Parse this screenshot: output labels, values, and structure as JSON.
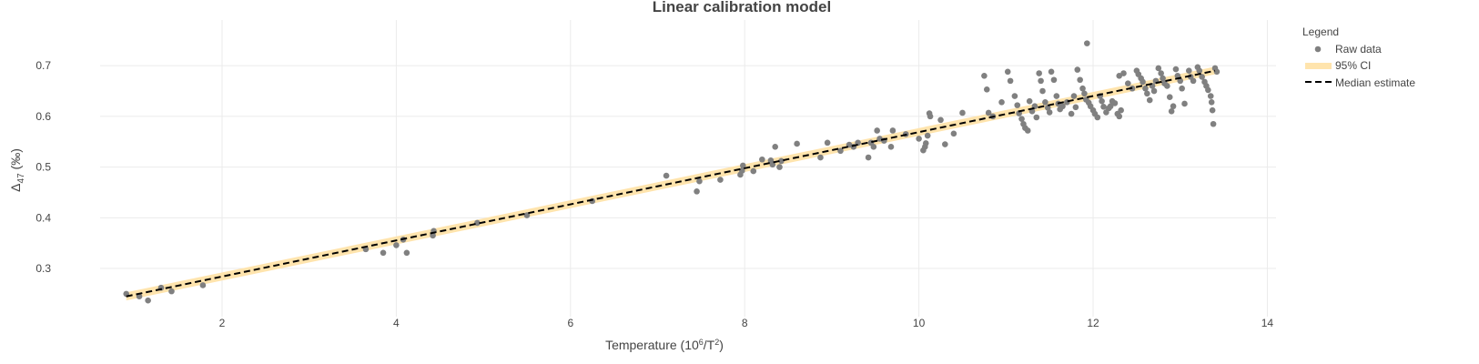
{
  "chart_data": {
    "type": "scatter",
    "title": "Linear calibration model",
    "xlabel": {
      "prefix": "Temperature (10",
      "sup1": "6",
      "mid": "/T",
      "sup2": "2",
      "suffix": ")"
    },
    "ylabel": {
      "prefix": "Δ",
      "sub": "47",
      "suffix": " (‰)"
    },
    "xlim": [
      0.6,
      14.1
    ],
    "ylim": [
      0.205,
      0.79
    ],
    "xticks": [
      2,
      4,
      6,
      8,
      10,
      12,
      14
    ],
    "yticks": [
      0.3,
      0.4,
      0.5,
      0.6,
      0.7
    ],
    "grid": true,
    "legend": {
      "title": "Legend",
      "position": "right",
      "entries": [
        "Raw data",
        "95% CI",
        "Median estimate"
      ]
    },
    "colors": {
      "points": "#808080",
      "ci_band": "#ffe4ad",
      "median_line": "#000000",
      "grid": "#ebebeb",
      "text": "#444444"
    },
    "median_line": {
      "x": [
        0.9,
        13.4
      ],
      "y": [
        0.245,
        0.69
      ]
    },
    "ci_band": {
      "x": [
        0.9,
        13.4
      ],
      "lower": [
        0.237,
        0.683
      ],
      "upper": [
        0.253,
        0.698
      ]
    },
    "series": [
      {
        "name": "Raw data",
        "points": [
          [
            0.9,
            0.25
          ],
          [
            1.05,
            0.245
          ],
          [
            1.15,
            0.237
          ],
          [
            1.3,
            0.262
          ],
          [
            1.42,
            0.255
          ],
          [
            1.78,
            0.267
          ],
          [
            3.65,
            0.338
          ],
          [
            3.85,
            0.331
          ],
          [
            4.0,
            0.346
          ],
          [
            4.08,
            0.357
          ],
          [
            4.12,
            0.331
          ],
          [
            4.42,
            0.365
          ],
          [
            4.43,
            0.374
          ],
          [
            4.93,
            0.39
          ],
          [
            5.5,
            0.405
          ],
          [
            6.25,
            0.433
          ],
          [
            7.1,
            0.483
          ],
          [
            7.45,
            0.452
          ],
          [
            7.48,
            0.472
          ],
          [
            7.72,
            0.475
          ],
          [
            7.95,
            0.485
          ],
          [
            7.97,
            0.493
          ],
          [
            7.98,
            0.503
          ],
          [
            8.1,
            0.492
          ],
          [
            8.2,
            0.515
          ],
          [
            8.3,
            0.513
          ],
          [
            8.32,
            0.505
          ],
          [
            8.35,
            0.54
          ],
          [
            8.4,
            0.5
          ],
          [
            8.42,
            0.512
          ],
          [
            8.6,
            0.546
          ],
          [
            8.87,
            0.519
          ],
          [
            8.95,
            0.548
          ],
          [
            9.1,
            0.532
          ],
          [
            9.2,
            0.544
          ],
          [
            9.25,
            0.54
          ],
          [
            9.3,
            0.548
          ],
          [
            9.42,
            0.519
          ],
          [
            9.45,
            0.548
          ],
          [
            9.48,
            0.54
          ],
          [
            9.52,
            0.572
          ],
          [
            9.55,
            0.556
          ],
          [
            9.6,
            0.552
          ],
          [
            9.68,
            0.54
          ],
          [
            9.7,
            0.572
          ],
          [
            9.85,
            0.565
          ],
          [
            10.0,
            0.556
          ],
          [
            10.05,
            0.533
          ],
          [
            10.07,
            0.54
          ],
          [
            10.08,
            0.547
          ],
          [
            10.1,
            0.562
          ],
          [
            10.12,
            0.606
          ],
          [
            10.13,
            0.6
          ],
          [
            10.25,
            0.593
          ],
          [
            10.3,
            0.545
          ],
          [
            10.4,
            0.566
          ],
          [
            10.5,
            0.607
          ],
          [
            10.75,
            0.68
          ],
          [
            10.78,
            0.653
          ],
          [
            10.8,
            0.607
          ],
          [
            10.85,
            0.6
          ],
          [
            10.95,
            0.628
          ],
          [
            11.02,
            0.688
          ],
          [
            11.05,
            0.67
          ],
          [
            11.1,
            0.64
          ],
          [
            11.13,
            0.622
          ],
          [
            11.15,
            0.606
          ],
          [
            11.18,
            0.595
          ],
          [
            11.2,
            0.585
          ],
          [
            11.22,
            0.577
          ],
          [
            11.25,
            0.572
          ],
          [
            11.27,
            0.63
          ],
          [
            11.3,
            0.61
          ],
          [
            11.33,
            0.62
          ],
          [
            11.35,
            0.598
          ],
          [
            11.38,
            0.685
          ],
          [
            11.4,
            0.67
          ],
          [
            11.42,
            0.65
          ],
          [
            11.45,
            0.628
          ],
          [
            11.48,
            0.617
          ],
          [
            11.5,
            0.608
          ],
          [
            11.52,
            0.688
          ],
          [
            11.55,
            0.672
          ],
          [
            11.58,
            0.64
          ],
          [
            11.6,
            0.625
          ],
          [
            11.62,
            0.614
          ],
          [
            11.65,
            0.62
          ],
          [
            11.7,
            0.628
          ],
          [
            11.75,
            0.605
          ],
          [
            11.78,
            0.64
          ],
          [
            11.8,
            0.618
          ],
          [
            11.82,
            0.692
          ],
          [
            11.85,
            0.672
          ],
          [
            11.88,
            0.655
          ],
          [
            11.9,
            0.645
          ],
          [
            11.92,
            0.633
          ],
          [
            11.95,
            0.627
          ],
          [
            11.97,
            0.62
          ],
          [
            12.0,
            0.612
          ],
          [
            12.02,
            0.605
          ],
          [
            12.05,
            0.598
          ],
          [
            12.08,
            0.64
          ],
          [
            12.1,
            0.63
          ],
          [
            12.12,
            0.619
          ],
          [
            12.15,
            0.608
          ],
          [
            12.18,
            0.616
          ],
          [
            12.2,
            0.62
          ],
          [
            12.22,
            0.63
          ],
          [
            12.25,
            0.626
          ],
          [
            12.28,
            0.605
          ],
          [
            12.3,
            0.6
          ],
          [
            12.32,
            0.612
          ],
          [
            11.93,
            0.744
          ],
          [
            12.3,
            0.68
          ],
          [
            12.35,
            0.685
          ],
          [
            12.4,
            0.665
          ],
          [
            12.45,
            0.655
          ],
          [
            12.5,
            0.69
          ],
          [
            12.52,
            0.683
          ],
          [
            12.55,
            0.675
          ],
          [
            12.57,
            0.668
          ],
          [
            12.6,
            0.655
          ],
          [
            12.62,
            0.645
          ],
          [
            12.65,
            0.632
          ],
          [
            12.68,
            0.66
          ],
          [
            12.7,
            0.65
          ],
          [
            12.72,
            0.67
          ],
          [
            12.75,
            0.695
          ],
          [
            12.78,
            0.685
          ],
          [
            12.8,
            0.675
          ],
          [
            12.82,
            0.665
          ],
          [
            12.85,
            0.66
          ],
          [
            12.88,
            0.638
          ],
          [
            12.9,
            0.61
          ],
          [
            12.92,
            0.62
          ],
          [
            12.95,
            0.693
          ],
          [
            12.97,
            0.68
          ],
          [
            13.0,
            0.67
          ],
          [
            13.02,
            0.655
          ],
          [
            13.05,
            0.625
          ],
          [
            13.1,
            0.69
          ],
          [
            13.12,
            0.678
          ],
          [
            13.15,
            0.67
          ],
          [
            13.2,
            0.697
          ],
          [
            13.22,
            0.69
          ],
          [
            13.25,
            0.678
          ],
          [
            13.28,
            0.668
          ],
          [
            13.3,
            0.66
          ],
          [
            13.32,
            0.652
          ],
          [
            13.35,
            0.64
          ],
          [
            13.36,
            0.628
          ],
          [
            13.37,
            0.612
          ],
          [
            13.38,
            0.585
          ],
          [
            13.4,
            0.695
          ],
          [
            13.42,
            0.688
          ]
        ]
      }
    ]
  }
}
